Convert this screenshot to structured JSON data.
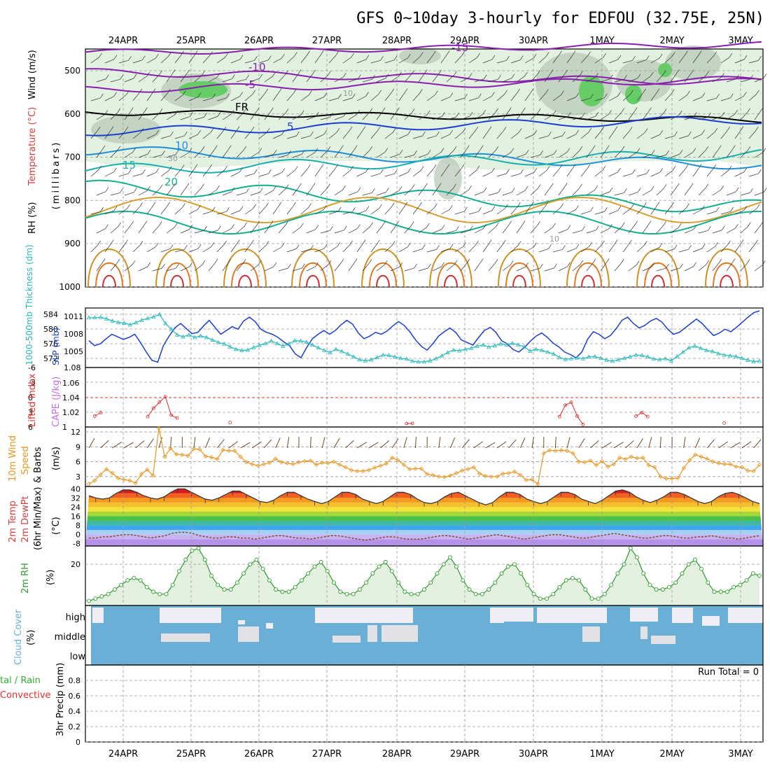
{
  "title": "GFS 0~10day 3-hourly for EDFOU (32.75E, 25N)",
  "date_labels": [
    "24APR",
    "25APR",
    "26APR",
    "27APR",
    "28APR",
    "29APR",
    "30APR",
    "1MAY",
    "2MAY",
    "3MAY"
  ],
  "colors": {
    "frame": "#000000",
    "grid": "#9a9a9a",
    "rh_green_light": "#e3f1e1",
    "rh_green_mid": "#b9c9b8",
    "rh_green_dark": "#66cc66",
    "slp": "#1c3fd0",
    "thickness": "#26b8b8",
    "lifted": "#d93030",
    "cape": "#c070e0",
    "wind_speed": "#e8951f",
    "barb": "#5a3a1a",
    "rh2m": "#2e9b2e",
    "cloud": "#6baed6",
    "cloud_clear": "#eeeef4",
    "precip_total": "#30b030",
    "precip_conv": "#e03030"
  },
  "panels": {
    "upper": {
      "ylabel_wind": "Wind (m/s)",
      "ylabel_temp": "Temperature (°C)",
      "ylabel_rh": "RH (%)",
      "ylabel_unit": "(millibars)",
      "yticks": [
        "500",
        "600",
        "700",
        "800",
        "900",
        "1000"
      ],
      "temp_labels": [
        "-15",
        "-10",
        "-5",
        "FR",
        "5",
        "10",
        "15",
        "20"
      ],
      "rh_labels": [
        "10",
        "30",
        "10"
      ]
    },
    "slp": {
      "ylabel_thickness": "1000-500mb Thickness (dm)",
      "ylabel_slp": "SLP (mb)",
      "left_ticks": [
        "584",
        "580",
        "576",
        "572"
      ],
      "right_ticks": [
        "1011",
        "1008",
        "1005",
        "1.08"
      ]
    },
    "cape": {
      "ylabel_li": "Lifted Index",
      "ylabel_cape": "CAPE (J/kg)",
      "left_ticks": [
        "-6",
        "-3",
        "0",
        "3",
        "6"
      ],
      "right_ticks": [
        "1.06",
        "1.04",
        "1.02",
        "1"
      ]
    },
    "wind10": {
      "ylabel_a": "10m Wind",
      "ylabel_b": "Speed",
      "ylabel_c": "& Barbs",
      "ylabel_unit": "(m/s)",
      "yticks": [
        "12",
        "9",
        "6",
        "3"
      ]
    },
    "temp2m": {
      "ylabel_a": "2m Temp",
      "ylabel_b": "2m DewPt",
      "ylabel_c": "(6hr Min/Max)",
      "ylabel_unit": "(°C)",
      "yticks": [
        "40",
        "32",
        "24",
        "16",
        "8",
        "0",
        "-8"
      ]
    },
    "rh2m": {
      "ylabel": "2m RH",
      "ylabel_unit": "(%)",
      "yticks": [
        "20"
      ]
    },
    "cloud": {
      "ylabel": "Cloud Cover",
      "ylabel_unit": "(%)",
      "levels": [
        "high",
        "middle",
        "low"
      ]
    },
    "precip": {
      "ylabel_a": "tal / Rain",
      "ylabel_b": "Convective",
      "ylabel_unit": "3hr Precip (mm)",
      "yticks": [
        "0.8",
        "0.6",
        "0.4",
        "0.2",
        "0"
      ],
      "run_total": "Run Total = 0"
    }
  },
  "chart_data": [
    {
      "type": "line",
      "panel": "slp",
      "title": "SLP (mb)",
      "x_start": "24APR",
      "x_step_hours": 3,
      "ylim": [
        1003.5,
        1012
      ],
      "values": [
        1007.3,
        1006.5,
        1006.8,
        1007.6,
        1008.3,
        1007.9,
        1007.5,
        1007.8,
        1008.3,
        1007.0,
        1005.5,
        1004.2,
        1003.9,
        1006.5,
        1008.0,
        1009.3,
        1010.0,
        1009.2,
        1008.4,
        1008.6,
        1009.6,
        1010.5,
        1009.4,
        1008.3,
        1008.9,
        1009.5,
        1009.1,
        1010.4,
        1011.0,
        1010.3,
        1009.1,
        1008.6,
        1008.3,
        1007.8,
        1007.1,
        1006.5,
        1005.2,
        1004.6,
        1006.2,
        1007.6,
        1008.3,
        1008.9,
        1008.3,
        1008.9,
        1009.8,
        1010.5,
        1009.9,
        1008.5,
        1007.6,
        1008.0,
        1008.6,
        1008.3,
        1008.8,
        1009.6,
        1010.3,
        1009.7,
        1008.7,
        1007.4,
        1006.4,
        1005.8,
        1006.8,
        1008.0,
        1008.7,
        1009.3,
        1008.6,
        1007.4,
        1007.0,
        1006.6,
        1007.8,
        1008.9,
        1009.4,
        1008.6,
        1007.3,
        1006.8,
        1005.9,
        1005.5,
        1006.2,
        1007.2,
        1008.0,
        1008.5,
        1007.8,
        1006.9,
        1006.3,
        1005.5,
        1005.1,
        1004.6,
        1005.5,
        1007.5,
        1008.7,
        1008.3,
        1007.6,
        1008.1,
        1009.2,
        1010.5,
        1011.0,
        1010.0,
        1009.3,
        1009.7,
        1010.4,
        1010.8,
        1010.2,
        1009.1,
        1008.3,
        1008.6,
        1009.3,
        1010.0,
        1010.7,
        1010.0,
        1009.0,
        1008.1,
        1008.5,
        1009.1,
        1008.7,
        1009.4,
        1010.2,
        1011.0,
        1011.7,
        1012.0
      ]
    },
    {
      "type": "line",
      "panel": "slp",
      "title": "1000-500mb Thickness (dm)",
      "ylim": [
        570.5,
        585.5
      ],
      "values": [
        583.6,
        583.6,
        583.7,
        583.3,
        582.7,
        582.3,
        582.1,
        581.6,
        582.2,
        582.9,
        583.4,
        583.8,
        584.5,
        582.0,
        580.4,
        578.8,
        578.3,
        578.8,
        578.1,
        578.5,
        578.1,
        577.4,
        576.7,
        576.3,
        575.5,
        574.8,
        574.5,
        574.6,
        575.3,
        575.9,
        576.4,
        577.1,
        576.4,
        575.7,
        576.3,
        577.2,
        577.1,
        576.8,
        576.0,
        575.2,
        574.5,
        573.9,
        574.8,
        574.2,
        573.5,
        572.7,
        571.9,
        571.6,
        571.9,
        572.5,
        573.2,
        573.1,
        572.7,
        572.3,
        572.1,
        571.5,
        571.3,
        571.3,
        571.6,
        572.2,
        573.0,
        573.9,
        574.6,
        574.4,
        574.8,
        575.1,
        575.7,
        576.0,
        575.4,
        575.8,
        576.3,
        576.0,
        576.5,
        576.0,
        575.5,
        574.3,
        574.8,
        574.5,
        574.0,
        573.5,
        572.5,
        572.0,
        572.2,
        572.4,
        572.2,
        572.7,
        572.8,
        572.3,
        571.8,
        571.5,
        571.9,
        572.3,
        572.7,
        573.2,
        573.1,
        572.7,
        572.1,
        571.9,
        572.2,
        571.6,
        572.8,
        574.0,
        575.2,
        575.7,
        575.1,
        574.5,
        574.2,
        573.6,
        573.2,
        573.0,
        572.8,
        572.3,
        571.8,
        571.4,
        571.5
      ]
    },
    {
      "type": "line",
      "panel": "cape",
      "title": "Lifted Index",
      "ylim": [
        -6,
        6
      ],
      "values": [
        null,
        3.8,
        3.1,
        null,
        null,
        null,
        null,
        null,
        null,
        null,
        3.9,
        2.2,
        1.0,
        -0.1,
        3.6,
        4.2,
        null,
        null,
        null,
        null,
        null,
        null,
        null,
        null,
        5.1,
        null,
        null,
        null,
        null,
        null,
        null,
        null,
        null,
        null,
        null,
        null,
        null,
        null,
        null,
        null,
        null,
        null,
        null,
        null,
        null,
        null,
        null,
        null,
        null,
        null,
        null,
        null,
        null,
        null,
        5.3,
        5.3,
        null,
        null,
        null,
        null,
        null,
        null,
        null,
        null,
        null,
        null,
        null,
        null,
        null,
        null,
        null,
        null,
        null,
        null,
        null,
        null,
        null,
        null,
        null,
        null,
        3.9,
        1.6,
        1.0,
        3.8,
        5.5,
        null,
        null,
        null,
        null,
        null,
        null,
        null,
        null,
        3.8,
        3.1,
        3.9,
        null,
        null,
        null,
        null,
        null,
        null,
        null,
        null,
        null,
        null,
        null,
        null,
        5.2,
        null,
        null,
        null,
        null,
        null,
        null
      ]
    },
    {
      "type": "line",
      "panel": "wind10",
      "title": "10m Wind Speed (m/s)",
      "ylim": [
        1,
        13
      ],
      "values": [
        1.5,
        2.2,
        3.4,
        4.5,
        3.7,
        2.7,
        2.4,
        2.2,
        1.7,
        3.5,
        4.4,
        3.2,
        12.8,
        7.0,
        8.7,
        7.5,
        7.4,
        7.2,
        8.6,
        8.5,
        7.1,
        6.9,
        6.5,
        8.4,
        8.2,
        8.2,
        7.0,
        5.9,
        5.5,
        5.2,
        5.5,
        5.8,
        6.6,
        5.9,
        5.7,
        5.5,
        5.9,
        6.1,
        6.2,
        5.4,
        5.8,
        5.7,
        6.0,
        5.4,
        4.9,
        4.3,
        4.1,
        4.1,
        4.3,
        4.8,
        5.2,
        5.6,
        6.8,
        6.3,
        5.4,
        4.5,
        4.6,
        4.6,
        3.5,
        3.3,
        3.0,
        2.9,
        3.2,
        3.7,
        4.2,
        4.5,
        4.9,
        3.6,
        3.1,
        3.0,
        3.0,
        3.6,
        3.7,
        4.0,
        3.3,
        2.3,
        2.4,
        1.5,
        7.7,
        8.3,
        8.2,
        8.3,
        8.2,
        7.7,
        6.0,
        5.9,
        6.2,
        5.3,
        6.1,
        5.0,
        5.5,
        6.8,
        6.5,
        7.0,
        6.7,
        6.8,
        5.3,
        4.9,
        3.0,
        2.6,
        2.6,
        2.7,
        4.7,
        6.3,
        7.4,
        7.0,
        6.6,
        6.0,
        5.7,
        5.5,
        5.5,
        5.0,
        4.9,
        4.2,
        4.1,
        5.4
      ]
    },
    {
      "type": "area",
      "panel": "temp2m",
      "title": "2m Temp (°C)",
      "ylim": [
        -10,
        42
      ],
      "values": [
        34,
        32,
        31,
        32,
        36,
        39,
        39,
        37,
        34,
        32,
        31,
        33,
        37,
        40,
        40,
        37,
        34,
        31,
        30,
        32,
        35,
        38,
        38,
        35,
        32,
        29,
        28,
        30,
        34,
        37,
        37,
        34,
        31,
        29,
        27,
        29,
        33,
        37,
        37,
        35,
        31,
        29,
        27,
        29,
        33,
        37,
        37,
        35,
        31,
        28,
        27,
        29,
        33,
        36,
        37,
        34,
        31,
        28,
        26,
        28,
        33,
        37,
        37,
        35,
        31,
        29,
        27,
        29,
        33,
        37,
        37,
        35,
        31,
        29,
        27,
        30,
        34,
        38,
        39,
        37,
        33,
        30,
        28,
        30,
        33,
        37,
        37,
        35,
        32,
        29,
        27,
        29,
        33,
        36,
        37,
        35,
        32,
        29,
        27
      ]
    },
    {
      "type": "line",
      "panel": "temp2m",
      "title": "2m DewPt (°C)",
      "ylim": [
        -10,
        42
      ],
      "values": [
        -3,
        -3,
        -2,
        -2,
        -1,
        0,
        0,
        -1,
        -2,
        -3,
        -2,
        -1,
        1,
        2,
        2,
        1,
        -1,
        -2,
        -3,
        -3,
        -2,
        -2,
        -3,
        -3,
        -4,
        -3,
        -2,
        -1,
        -1,
        -2,
        -3,
        -3,
        -4,
        -3,
        -2,
        -1,
        -1,
        -2,
        -3,
        -4,
        -5,
        -4,
        -3,
        -2,
        -2,
        -3,
        -4,
        -4,
        -4,
        -3,
        -2,
        -1,
        -1,
        -2,
        -3,
        -4,
        -3,
        -2,
        -1,
        0,
        -1,
        -2,
        -3,
        -4,
        -3,
        -2,
        -1,
        0,
        0,
        -1,
        -2,
        -3,
        -3,
        -2,
        -1,
        0,
        1,
        0,
        -1,
        -2,
        -3,
        -3,
        -2,
        -1,
        -1,
        -2,
        -3,
        -3,
        -2,
        -2,
        -1,
        -2,
        -3,
        -3,
        -4,
        -3,
        -2,
        -1
      ]
    },
    {
      "type": "area",
      "panel": "rh2m",
      "title": "2m RH (%)",
      "ylim": [
        2,
        28
      ],
      "values": [
        4,
        5,
        6,
        7,
        9,
        11,
        13,
        14,
        13,
        10,
        8,
        7,
        7,
        11,
        17,
        22,
        26,
        27,
        22,
        15,
        11,
        9,
        9,
        12,
        16,
        20,
        22,
        18,
        13,
        9,
        8,
        8,
        10,
        13,
        16,
        19,
        21,
        17,
        12,
        8,
        7,
        7,
        9,
        12,
        16,
        19,
        21,
        17,
        12,
        8,
        7,
        7,
        9,
        12,
        16,
        20,
        23,
        19,
        13,
        9,
        7,
        7,
        9,
        12,
        16,
        19,
        20,
        16,
        11,
        7,
        5,
        5,
        7,
        10,
        13,
        14,
        13,
        9,
        5,
        5,
        7,
        11,
        16,
        20,
        27,
        23,
        16,
        11,
        9,
        9,
        10,
        12,
        16,
        20,
        22,
        18,
        12,
        8,
        8,
        8,
        10,
        11,
        13,
        16,
        15
      ]
    }
  ]
}
